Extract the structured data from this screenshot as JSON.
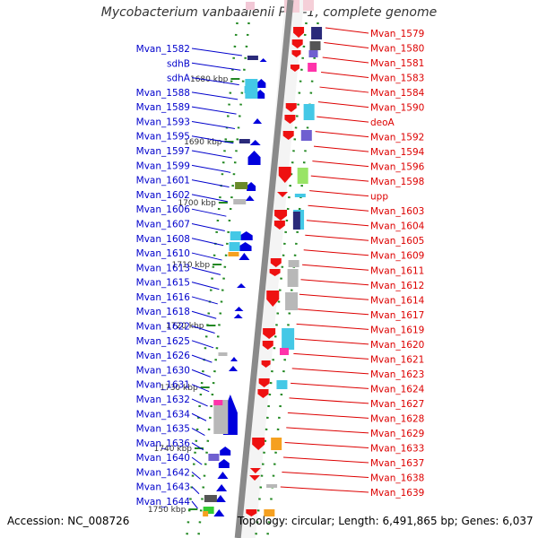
{
  "title": "Mycobacterium vanbaalenii PYR-1, complete genome",
  "footer": {
    "accession": "Accession: NC_008726",
    "topology": "Topology: circular; Length: 6,491,865 bp; Genes: 6,037"
  },
  "colors": {
    "left_label": "#0000cc",
    "right_label": "#dd0000",
    "forward_strand": "#0000dd",
    "reverse_strand": "#ee1111",
    "backbone": "#8a8a8a",
    "tick": "#228822"
  },
  "kbp_ticks": [
    "1680 kbp",
    "1690 kbp",
    "1700 kbp",
    "1710 kbp",
    "1720 kbp",
    "1730 kbp",
    "1740 kbp",
    "1750 kbp"
  ],
  "left_labels": [
    "Mvan_1582",
    "sdhB",
    "sdhA",
    "Mvan_1588",
    "Mvan_1589",
    "Mvan_1593",
    "Mvan_1595",
    "Mvan_1597",
    "Mvan_1599",
    "Mvan_1601",
    "Mvan_1602",
    "Mvan_1606",
    "Mvan_1607",
    "Mvan_1608",
    "Mvan_1610",
    "Mvan_1613",
    "Mvan_1615",
    "Mvan_1616",
    "Mvan_1618",
    "Mvan_1622",
    "Mvan_1625",
    "Mvan_1626",
    "Mvan_1630",
    "Mvan_1631",
    "Mvan_1632",
    "Mvan_1634",
    "Mvan_1635",
    "Mvan_1636",
    "Mvan_1640",
    "Mvan_1642",
    "Mvan_1643",
    "Mvan_1644"
  ],
  "right_labels": [
    "Mvan_1579",
    "Mvan_1580",
    "Mvan_1581",
    "Mvan_1583",
    "Mvan_1584",
    "Mvan_1590",
    "deoA",
    "Mvan_1592",
    "Mvan_1594",
    "Mvan_1596",
    "Mvan_1598",
    "upp",
    "Mvan_1603",
    "Mvan_1604",
    "Mvan_1605",
    "Mvan_1609",
    "Mvan_1611",
    "Mvan_1612",
    "Mvan_1614",
    "Mvan_1617",
    "Mvan_1619",
    "Mvan_1620",
    "Mvan_1621",
    "Mvan_1623",
    "Mvan_1624",
    "Mvan_1627",
    "Mvan_1628",
    "Mvan_1629",
    "Mvan_1633",
    "Mvan_1637",
    "Mvan_1638",
    "Mvan_1639"
  ]
}
